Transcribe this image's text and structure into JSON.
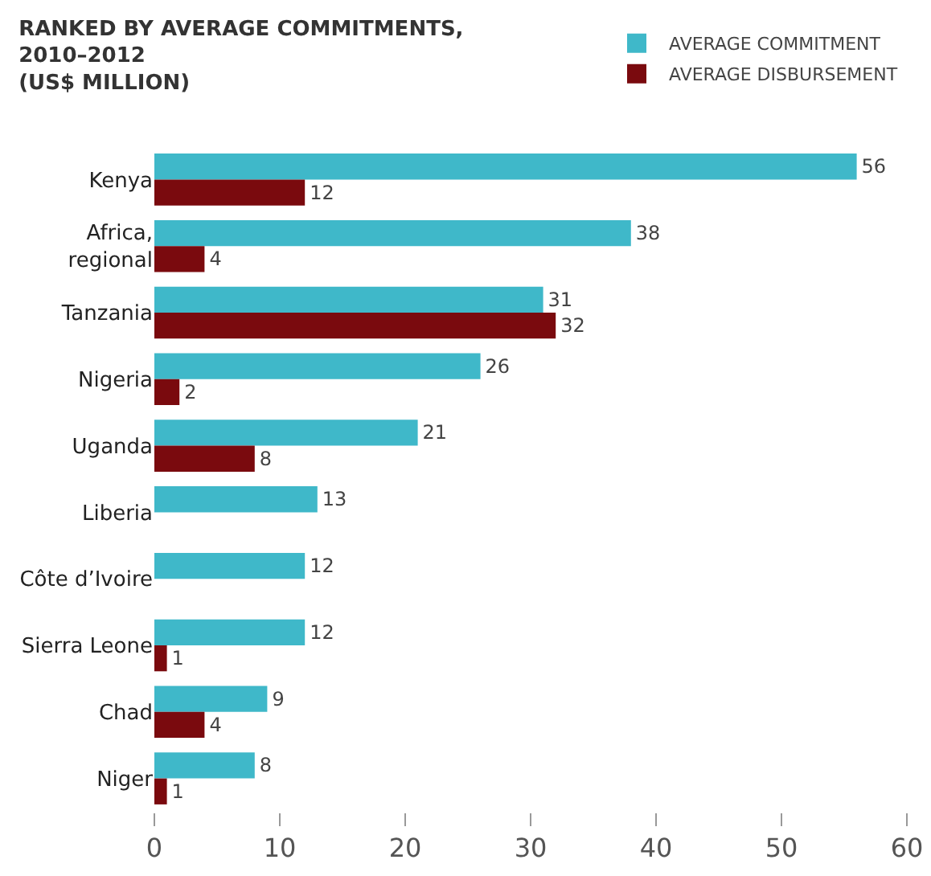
{
  "chart_data": {
    "type": "bar",
    "orientation": "horizontal",
    "title": "RANKED BY AVERAGE COMMITMENTS,\n2010–2012\n(US$ MILLION)",
    "categories": [
      "Kenya",
      "Africa,\nregional",
      "Tanzania",
      "Nigeria",
      "Uganda",
      "Liberia",
      "Côte d’Ivoire",
      "Sierra Leone",
      "Chad",
      "Niger"
    ],
    "series": [
      {
        "name": "AVERAGE COMMITMENT",
        "color": "#3fb8c9",
        "values": [
          56,
          38,
          31,
          26,
          21,
          13,
          12,
          12,
          9,
          8
        ]
      },
      {
        "name": "AVERAGE DISBURSEMENT",
        "color": "#7a0a0e",
        "values": [
          12,
          4,
          32,
          2,
          8,
          null,
          null,
          1,
          4,
          1
        ]
      }
    ],
    "xlim": [
      0,
      60
    ],
    "xticks": [
      0,
      10,
      20,
      30,
      40,
      50,
      60
    ],
    "data_labels": true,
    "grid": false,
    "legend": "top right"
  }
}
